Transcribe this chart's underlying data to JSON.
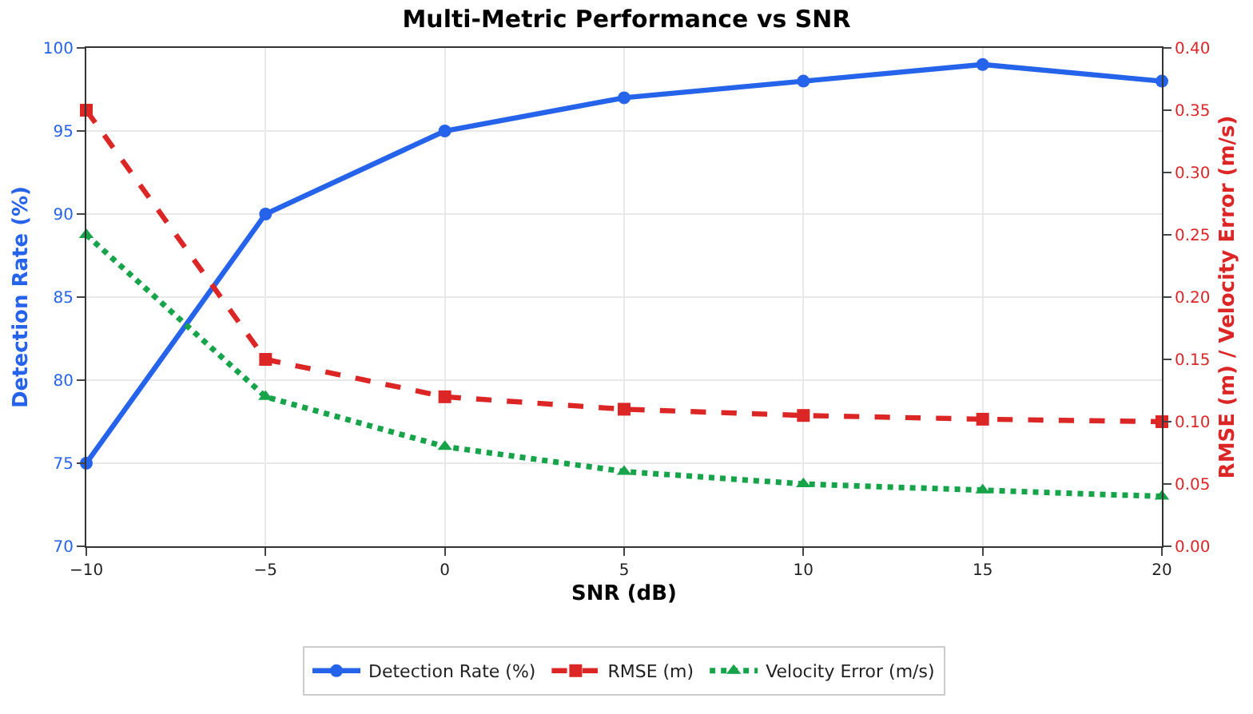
{
  "chart_data": {
    "type": "line",
    "title": "Multi-Metric Performance vs SNR",
    "xlabel": "SNR (dB)",
    "ylabel": "Detection Rate (%)",
    "y2label": "RMSE (m) / Velocity Error (m/s)",
    "x": [
      -10,
      -5,
      0,
      5,
      10,
      15,
      20
    ],
    "series": [
      {
        "name": "Detection Rate (%)",
        "color": "#2563eb",
        "values": [
          75,
          90,
          95,
          97,
          98,
          99,
          98
        ],
        "marker": "circle",
        "line_style": "solid"
      },
      {
        "name": "RMSE (m)",
        "color": "#dc2626",
        "values": [
          0.35,
          0.15,
          0.12,
          0.11,
          0.105,
          0.102,
          0.1
        ],
        "marker": "square",
        "line_style": "dashed",
        "axis": "y2"
      },
      {
        "name": "Velocity Error (m/s)",
        "color": "#16a34a",
        "values": [
          0.25,
          0.12,
          0.08,
          0.06,
          0.05,
          0.045,
          0.04
        ],
        "marker": "triangle",
        "line_style": "dotted",
        "axis": "y2"
      }
    ],
    "xlim": [
      -10,
      20
    ],
    "xticks": [
      {
        "value": -10,
        "label": "−10"
      },
      {
        "value": -5,
        "label": "−5"
      },
      0,
      5,
      10,
      15,
      20
    ],
    "ylim": [
      70,
      100
    ],
    "yticks": [
      70,
      75,
      80,
      85,
      90,
      95,
      100
    ],
    "y2lim": [
      0,
      0.4
    ],
    "y2ticks": [
      {
        "value": 0,
        "label": "0.00"
      },
      {
        "value": 0.05,
        "label": "0.05"
      },
      {
        "value": 0.1,
        "label": "0.10"
      },
      {
        "value": 0.15,
        "label": "0.15"
      },
      {
        "value": 0.2,
        "label": "0.20"
      },
      {
        "value": 0.25,
        "label": "0.25"
      },
      {
        "value": 0.3,
        "label": "0.30"
      },
      {
        "value": 0.35,
        "label": "0.35"
      },
      {
        "value": 0.4,
        "label": "0.40"
      }
    ],
    "grid": true,
    "legend": "bottom"
  }
}
